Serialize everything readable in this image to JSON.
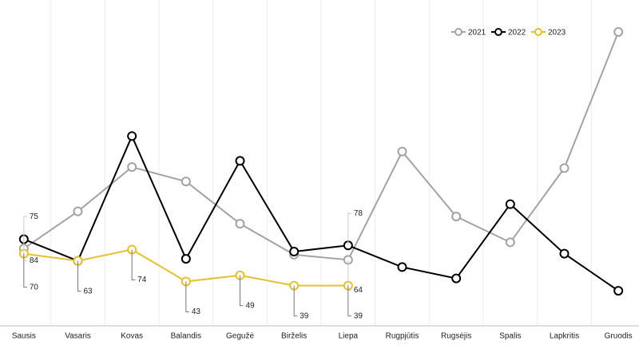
{
  "chart_data": {
    "type": "line",
    "categories": [
      "Sausis",
      "Vasaris",
      "Kovas",
      "Balandis",
      "Gegužė",
      "Birželis",
      "Liepa",
      "Rugpjūtis",
      "Rugsėjis",
      "Spalis",
      "Lapkritis",
      "Gruodis"
    ],
    "series": [
      {
        "name": "2021",
        "color": "#a3a3a3",
        "label_color": "#a3a3a3",
        "labeled_points": [
          0,
          6
        ],
        "values": [
          75,
          111,
          154,
          140,
          99,
          69,
          64,
          169,
          106,
          81,
          153,
          285
        ]
      },
      {
        "name": "2022",
        "color": "#000000",
        "label_color": "#a3a3a3",
        "labeled_points": [
          0,
          6
        ],
        "values": [
          84,
          63,
          184,
          65,
          160,
          72,
          78,
          57,
          46,
          118,
          70,
          34
        ]
      },
      {
        "name": "2023",
        "color": "#e6c02e",
        "label_color": "#111111",
        "labeled_points": [
          0,
          1,
          2,
          3,
          4,
          5,
          6
        ],
        "values": [
          70,
          63,
          74,
          43,
          49,
          39,
          39,
          null,
          null,
          null,
          null,
          null
        ]
      }
    ],
    "ylim": [
      0,
      316
    ],
    "grid": "vertical",
    "legend": "top-right"
  }
}
